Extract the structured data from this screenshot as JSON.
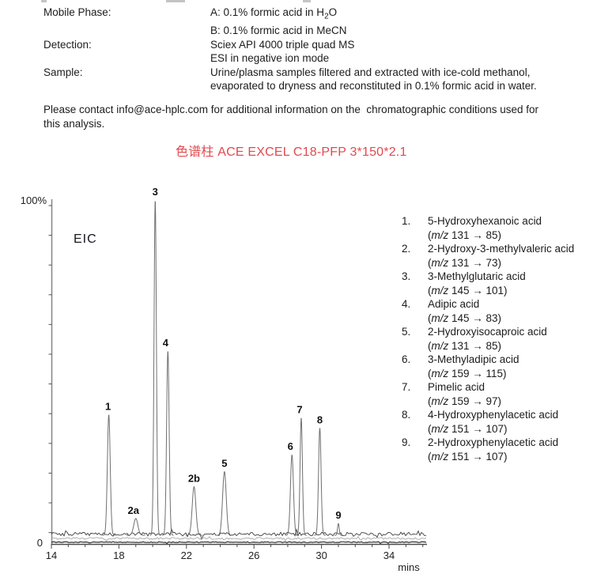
{
  "conditions": {
    "mobile_phase_label": "Mobile Phase:",
    "mobile_phase_a_pre": "A: 0.1% formic acid in H",
    "mobile_phase_a_sub": "2",
    "mobile_phase_a_post": "O",
    "mobile_phase_b": "B: 0.1% formic acid in MeCN",
    "detection_label": "Detection:",
    "detection_line1": "Sciex API 4000 triple quad MS",
    "detection_line2": "ESI in negative ion mode",
    "sample_label": "Sample:",
    "sample_line1": "Urine/plasma samples filtered and extracted with ice-cold methanol,",
    "sample_line2": "evaporated to dryness and reconstituted in 0.1% formic acid in water."
  },
  "contact": {
    "text": "Please contact info@ace-hplc.com for additional information on the  chromatographic conditions used for\nthis analysis."
  },
  "column_title": {
    "text": "色谱柱 ACE EXCEL C18-PFP 3*150*2.1",
    "color": "#e2494e"
  },
  "legend": {
    "open_paren": "(",
    "mz_label": "m/z",
    "close_paren": ")",
    "items": [
      {
        "num": "1.",
        "name": "5-Hydroxyhexanoic acid",
        "mz": "131 → 85"
      },
      {
        "num": "2.",
        "name": "2-Hydroxy-3-methylvaleric acid",
        "mz": "131 → 73"
      },
      {
        "num": "3.",
        "name": "3-Methylglutaric acid",
        "mz": "145 → 101"
      },
      {
        "num": "4.",
        "name": "Adipic acid",
        "mz": "145 → 83"
      },
      {
        "num": "5.",
        "name": "2-Hydroxyisocaproic acid",
        "mz": "131 → 85"
      },
      {
        "num": "6.",
        "name": "3-Methyladipic acid",
        "mz": "159 → 115"
      },
      {
        "num": "7.",
        "name": "Pimelic acid",
        "mz": "159 → 97"
      },
      {
        "num": "8.",
        "name": "4-Hydroxyphenylacetic acid",
        "mz": "151 → 107"
      },
      {
        "num": "9.",
        "name": "2-Hydroxyphenylacetic acid",
        "mz": "151 → 107"
      }
    ]
  },
  "chart_data": {
    "type": "line",
    "title": "EIC",
    "xlabel": "mins",
    "ylabel_top": "100%",
    "ylabel_bottom": "0",
    "xlim": [
      14,
      36.3
    ],
    "ylim": [
      0,
      100
    ],
    "x_ticks": [
      14,
      18,
      22,
      26,
      30,
      34
    ],
    "x_minor_tick_interval": 1,
    "grid": "off",
    "baseline_noise_pct": 1.2,
    "peaks": [
      {
        "label": "1",
        "time_min": 17.4,
        "height_pct": 36,
        "sigma_min": 0.084,
        "label_dx": -1
      },
      {
        "label": "2a",
        "time_min": 19.0,
        "height_pct": 5,
        "sigma_min": 0.122,
        "label_dx": -3
      },
      {
        "label": "3",
        "time_min": 20.15,
        "height_pct": 100,
        "sigma_min": 0.07,
        "label_dx": 0
      },
      {
        "label": "4",
        "time_min": 20.9,
        "height_pct": 55,
        "sigma_min": 0.075,
        "label_dx": -3
      },
      {
        "label": "2b",
        "time_min": 22.45,
        "height_pct": 14.5,
        "sigma_min": 0.108,
        "label_dx": 0
      },
      {
        "label": "5",
        "time_min": 24.25,
        "height_pct": 19,
        "sigma_min": 0.108,
        "label_dx": 0
      },
      {
        "label": "6",
        "time_min": 28.25,
        "height_pct": 24,
        "sigma_min": 0.089,
        "label_dx": -2
      },
      {
        "label": "7",
        "time_min": 28.8,
        "height_pct": 35,
        "sigma_min": 0.07,
        "label_dx": -2
      },
      {
        "label": "8",
        "time_min": 29.9,
        "height_pct": 32,
        "sigma_min": 0.075,
        "label_dx": 0
      },
      {
        "label": "9",
        "time_min": 31.0,
        "height_pct": 3.5,
        "sigma_min": 0.05,
        "label_dx": 0
      }
    ]
  }
}
